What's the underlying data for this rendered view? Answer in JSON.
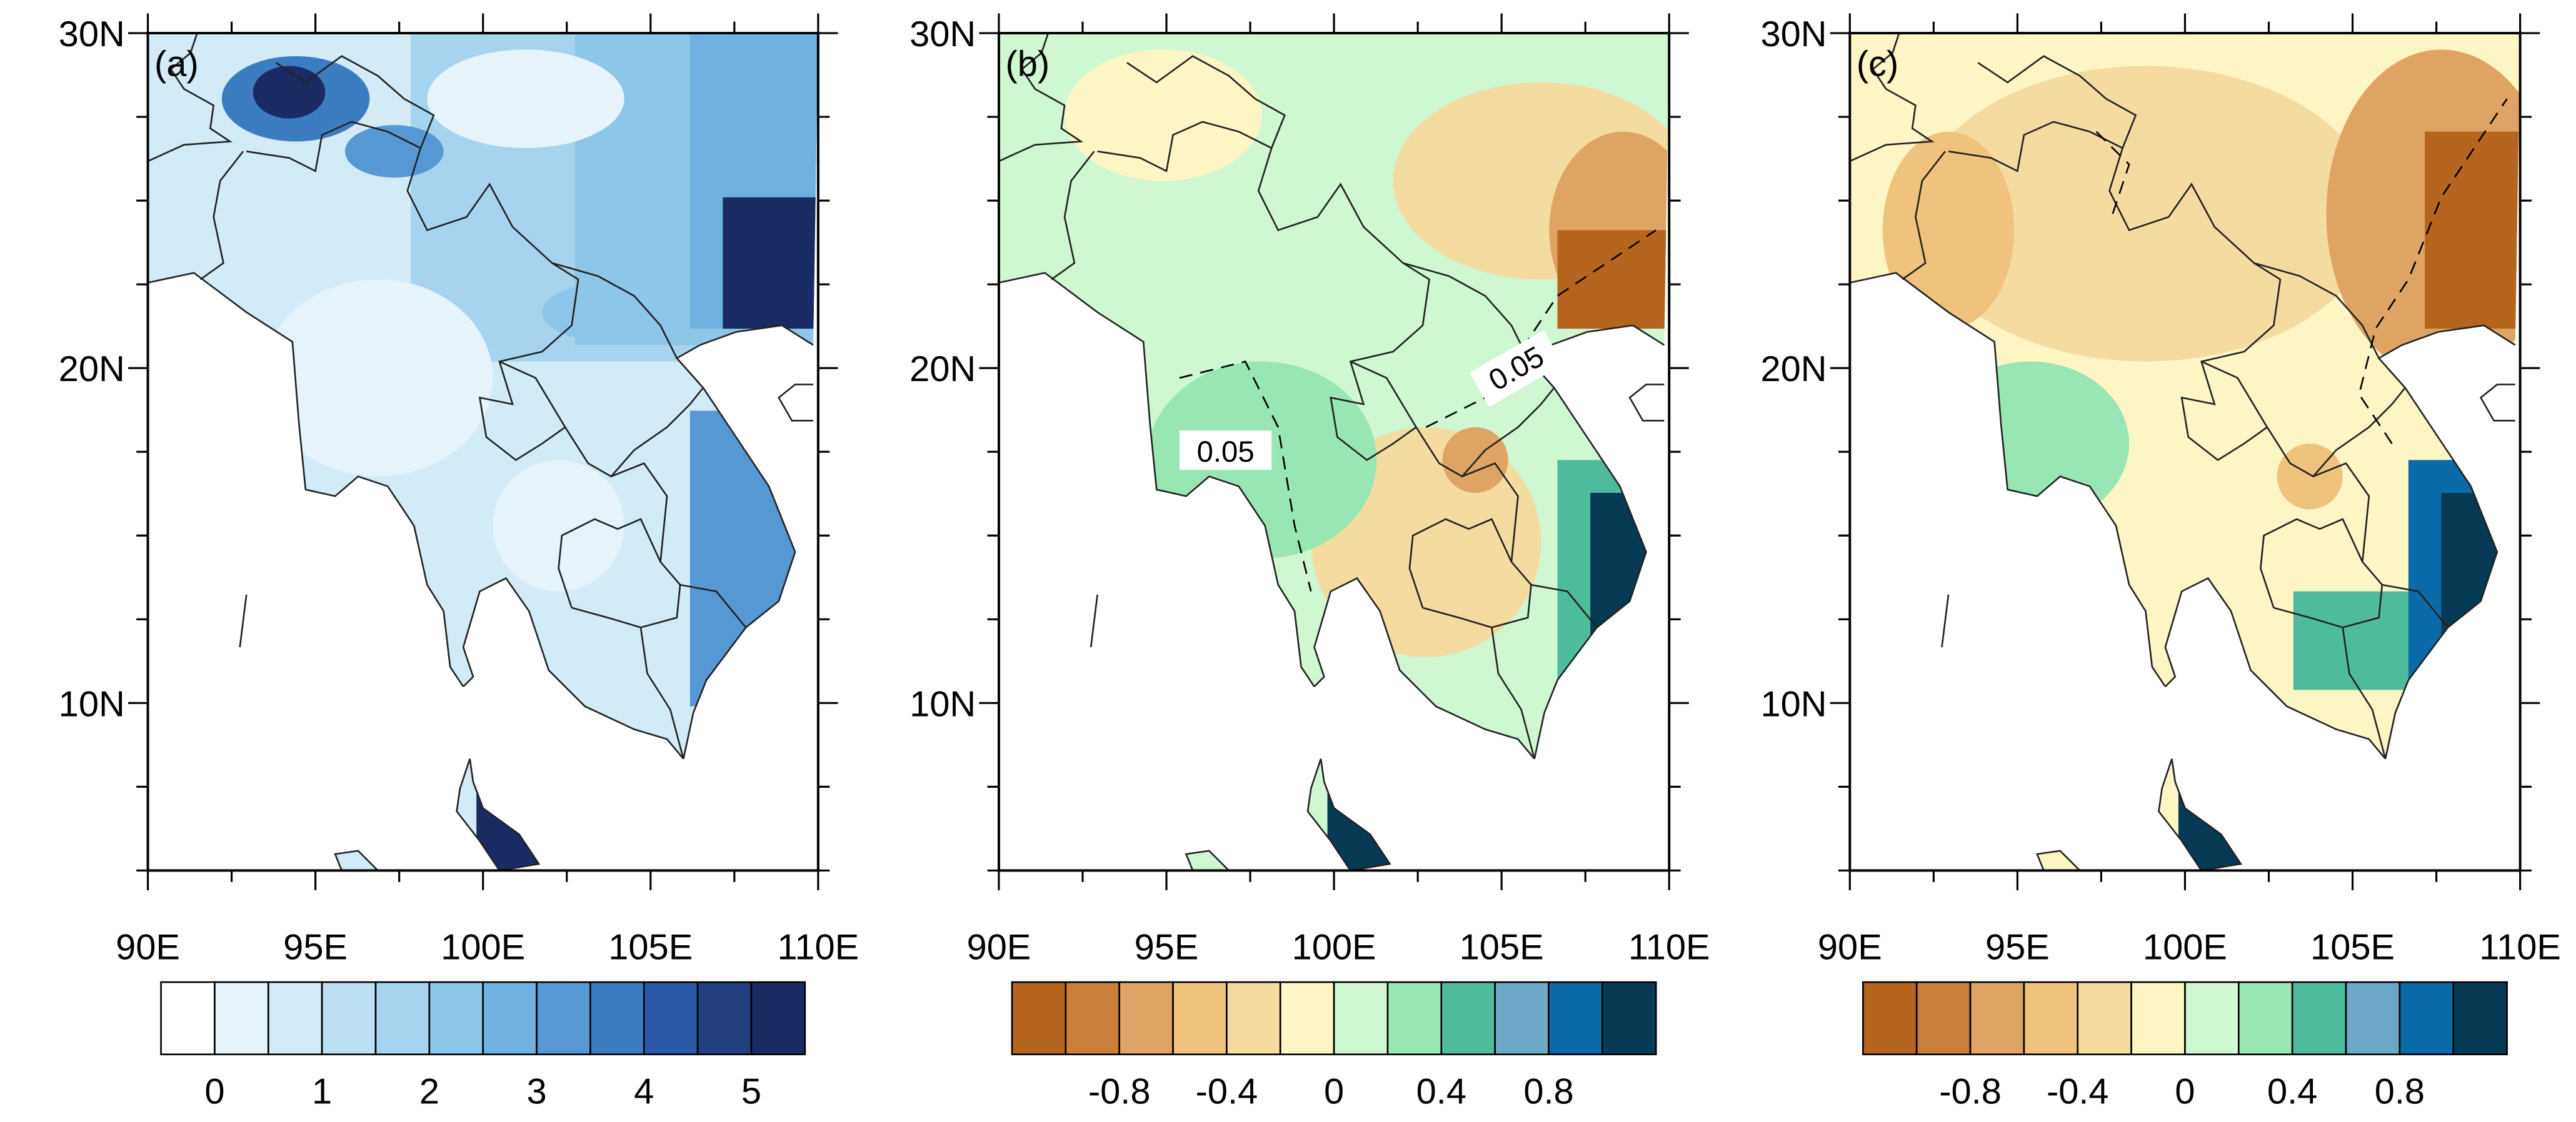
{
  "figure": {
    "panels": [
      {
        "id": "a",
        "label": "(a)",
        "lat_labels": [
          "30N",
          "20N",
          "10N"
        ],
        "lon_labels": [
          "90E",
          "95E",
          "100E",
          "105E",
          "110E"
        ],
        "colorbar": {
          "colors": [
            "#ffffff",
            "#e6f3fa",
            "#d2ebf6",
            "#bde0f2",
            "#a6d4ee",
            "#8cc6e9",
            "#6fb1e0",
            "#5598d3",
            "#3c7cc0",
            "#2a5aa8",
            "#22407f",
            "#1b2b63"
          ],
          "tick_labels": [
            "0",
            "1",
            "2",
            "3",
            "4",
            "5"
          ]
        },
        "contour_labels": []
      },
      {
        "id": "b",
        "label": "(b)",
        "lat_labels": [
          "30N",
          "20N",
          "10N"
        ],
        "lon_labels": [
          "90E",
          "95E",
          "100E",
          "105E",
          "110E"
        ],
        "colorbar": {
          "colors": [
            "#b5651d",
            "#c97e3a",
            "#dfa464",
            "#efc27e",
            "#f4dca0",
            "#fdf5c4",
            "#cff7d2",
            "#97e6b3",
            "#4fbb9d",
            "#6ea8c7",
            "#0b6aa8",
            "#073a55"
          ],
          "tick_labels": [
            "-0.8",
            "-0.4",
            "0",
            "0.4",
            "0.8"
          ]
        },
        "contour_labels": [
          "0.05",
          "0.05"
        ]
      },
      {
        "id": "c",
        "label": "(c)",
        "lat_labels": [
          "30N",
          "20N",
          "10N"
        ],
        "lon_labels": [
          "90E",
          "95E",
          "100E",
          "105E",
          "110E"
        ],
        "colorbar": {
          "colors": [
            "#b5651d",
            "#c97e3a",
            "#dfa464",
            "#efc27e",
            "#f4dca0",
            "#fdf5c4",
            "#cff7d2",
            "#97e6b3",
            "#4fbb9d",
            "#6ea8c7",
            "#0b6aa8",
            "#073a55"
          ],
          "tick_labels": [
            "-0.8",
            "-0.4",
            "0",
            "0.4",
            "0.8"
          ]
        },
        "contour_labels": []
      }
    ]
  }
}
